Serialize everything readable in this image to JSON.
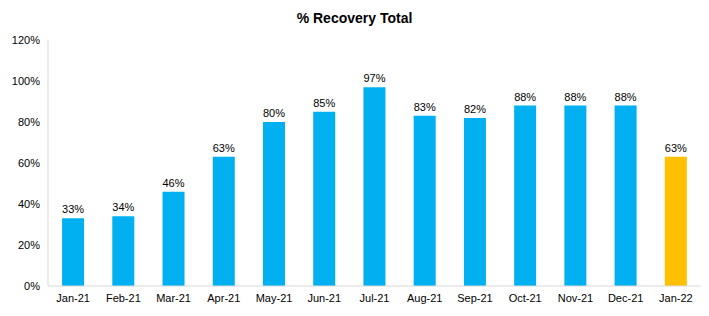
{
  "chart_data": {
    "type": "bar",
    "title": "% Recovery Total",
    "categories": [
      "Jan-21",
      "Feb-21",
      "Mar-21",
      "Apr-21",
      "May-21",
      "Jun-21",
      "Jul-21",
      "Aug-21",
      "Sep-21",
      "Oct-21",
      "Nov-21",
      "Dec-21",
      "Jan-22"
    ],
    "values": [
      33,
      34,
      46,
      63,
      80,
      85,
      97,
      83,
      82,
      88,
      88,
      88,
      63
    ],
    "value_labels": [
      "33%",
      "34%",
      "46%",
      "63%",
      "80%",
      "85%",
      "97%",
      "83%",
      "82%",
      "88%",
      "88%",
      "88%",
      "63%"
    ],
    "colors": [
      "#00b0f0",
      "#00b0f0",
      "#00b0f0",
      "#00b0f0",
      "#00b0f0",
      "#00b0f0",
      "#00b0f0",
      "#00b0f0",
      "#00b0f0",
      "#00b0f0",
      "#00b0f0",
      "#00b0f0",
      "#ffc000"
    ],
    "ylim": [
      0,
      120
    ],
    "yticks": [
      {
        "value": 0,
        "label": "0%"
      },
      {
        "value": 20,
        "label": "20%"
      },
      {
        "value": 40,
        "label": "40%"
      },
      {
        "value": 60,
        "label": "60%"
      },
      {
        "value": 80,
        "label": "80%"
      },
      {
        "value": 100,
        "label": "100%"
      },
      {
        "value": 120,
        "label": "120%"
      }
    ],
    "grid": false,
    "data_labels": true
  }
}
